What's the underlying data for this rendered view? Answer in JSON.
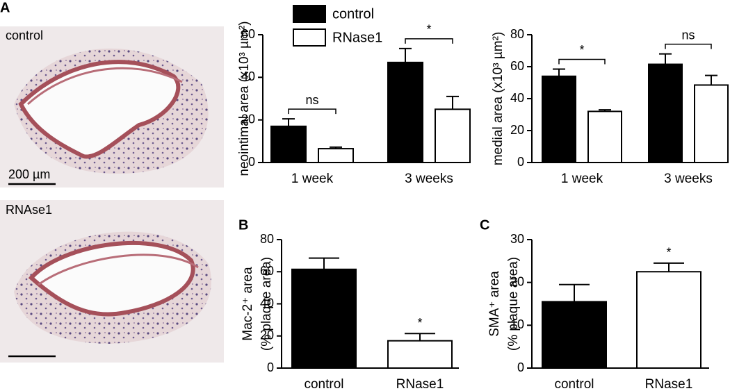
{
  "panel_labels": [
    "A",
    "B",
    "C"
  ],
  "images": [
    {
      "label": "control",
      "scale_bar": "200 µm"
    },
    {
      "label": "RNAse1"
    }
  ],
  "chart_data": [
    {
      "type": "bar",
      "categories": [
        "1 week",
        "3 weeks"
      ],
      "ylabel": "neointimal area (x10³ µm²)",
      "series": [
        {
          "name": "control",
          "color": "#000000",
          "values": [
            17,
            47
          ],
          "errors": [
            3.5,
            6.5
          ]
        },
        {
          "name": "RNase1",
          "color": "#ffffff",
          "values": [
            6.5,
            25
          ],
          "errors": [
            0.7,
            6
          ]
        }
      ],
      "significance": [
        "ns",
        "*"
      ],
      "ylim": [
        0,
        60
      ],
      "yticks": [
        0,
        20,
        40,
        60
      ],
      "legend": "top-left"
    },
    {
      "type": "bar",
      "categories": [
        "1 week",
        "3 weeks"
      ],
      "ylabel": "medial area (x10³ µm²)",
      "series": [
        {
          "color": "#000000",
          "values": [
            54,
            61.5
          ],
          "errors": [
            4.5,
            6.5
          ]
        },
        {
          "color": "#ffffff",
          "values": [
            32,
            48.5
          ],
          "errors": [
            1,
            6
          ]
        }
      ],
      "significance": [
        "*",
        "ns"
      ],
      "ylim": [
        0,
        80
      ],
      "yticks": [
        0,
        20,
        40,
        60,
        80
      ]
    },
    {
      "type": "bar",
      "categories": [
        "control",
        "RNase1"
      ],
      "ylabel": [
        "Mac-2⁺ area",
        "(% plaque area)"
      ],
      "values": [
        61.5,
        17
      ],
      "errors": [
        7,
        4.5
      ],
      "colors": [
        "#000000",
        "#ffffff"
      ],
      "significance": [
        null,
        "*"
      ],
      "ylim": [
        0,
        80
      ],
      "yticks": [
        0,
        20,
        40,
        60,
        80
      ]
    },
    {
      "type": "bar",
      "categories": [
        "control",
        "RNase1"
      ],
      "ylabel": [
        "SMA⁺ area",
        "(% plaque area)"
      ],
      "values": [
        15.5,
        22.5
      ],
      "errors": [
        4,
        2
      ],
      "colors": [
        "#000000",
        "#ffffff"
      ],
      "significance": [
        null,
        "*"
      ],
      "ylim": [
        0,
        30
      ],
      "yticks": [
        0,
        10,
        20,
        30
      ]
    }
  ]
}
